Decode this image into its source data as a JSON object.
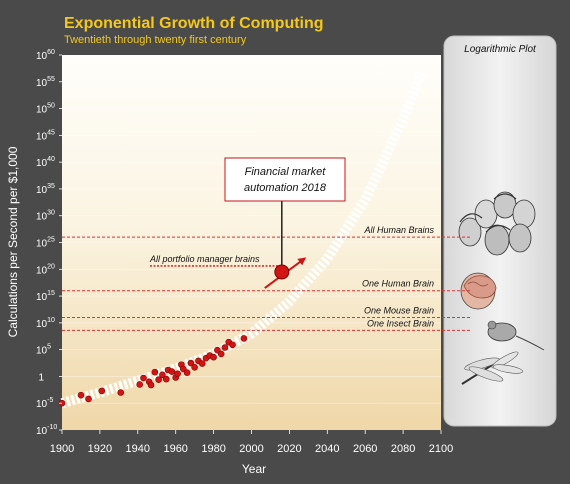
{
  "chart_data": {
    "type": "scatter",
    "title": "Exponential Growth of Computing",
    "subtitle": "Twentieth through twenty first century",
    "xlabel": "Year",
    "ylabel": "Calculations per Second per $1,000",
    "y_scale": "log",
    "xlim": [
      1900,
      2100
    ],
    "ylim_exponent": [
      -10,
      60
    ],
    "x_ticks": [
      "1900",
      "1920",
      "1940",
      "1960",
      "1980",
      "2000",
      "2020",
      "2040",
      "2060",
      "2080",
      "2100"
    ],
    "y_ticks": [
      {
        "base": "10",
        "exp": "60"
      },
      {
        "base": "10",
        "exp": "55"
      },
      {
        "base": "10",
        "exp": "50"
      },
      {
        "base": "10",
        "exp": "45"
      },
      {
        "base": "10",
        "exp": "40"
      },
      {
        "base": "10",
        "exp": "35"
      },
      {
        "base": "10",
        "exp": "30"
      },
      {
        "base": "10",
        "exp": "25"
      },
      {
        "base": "10",
        "exp": "20"
      },
      {
        "base": "10",
        "exp": "15"
      },
      {
        "base": "10",
        "exp": "10"
      },
      {
        "base": "10",
        "exp": "5"
      },
      {
        "base": "1",
        "exp": ""
      },
      {
        "base": "10",
        "exp": "-5"
      },
      {
        "base": "10",
        "exp": "-10"
      }
    ],
    "points": [
      {
        "x": 1900,
        "y_exp": -5.0
      },
      {
        "x": 1910,
        "y_exp": -3.5
      },
      {
        "x": 1914,
        "y_exp": -4.2
      },
      {
        "x": 1921,
        "y_exp": -2.7
      },
      {
        "x": 1931,
        "y_exp": -3.0
      },
      {
        "x": 1941,
        "y_exp": -1.5
      },
      {
        "x": 1943,
        "y_exp": -0.3
      },
      {
        "x": 1946,
        "y_exp": -1.0
      },
      {
        "x": 1947,
        "y_exp": -1.6
      },
      {
        "x": 1949,
        "y_exp": 0.8
      },
      {
        "x": 1951,
        "y_exp": -0.6
      },
      {
        "x": 1953,
        "y_exp": 0.3
      },
      {
        "x": 1955,
        "y_exp": -0.5
      },
      {
        "x": 1956,
        "y_exp": 1.2
      },
      {
        "x": 1958,
        "y_exp": 0.9
      },
      {
        "x": 1960,
        "y_exp": -0.2
      },
      {
        "x": 1961,
        "y_exp": 0.5
      },
      {
        "x": 1963,
        "y_exp": 2.2
      },
      {
        "x": 1964,
        "y_exp": 1.4
      },
      {
        "x": 1966,
        "y_exp": 0.7
      },
      {
        "x": 1968,
        "y_exp": 2.5
      },
      {
        "x": 1970,
        "y_exp": 1.7
      },
      {
        "x": 1972,
        "y_exp": 2.9
      },
      {
        "x": 1974,
        "y_exp": 2.4
      },
      {
        "x": 1976,
        "y_exp": 3.4
      },
      {
        "x": 1978,
        "y_exp": 3.9
      },
      {
        "x": 1980,
        "y_exp": 3.6
      },
      {
        "x": 1982,
        "y_exp": 4.9
      },
      {
        "x": 1984,
        "y_exp": 4.2
      },
      {
        "x": 1986,
        "y_exp": 5.4
      },
      {
        "x": 1988,
        "y_exp": 6.4
      },
      {
        "x": 1990,
        "y_exp": 5.9
      },
      {
        "x": 1996,
        "y_exp": 7.1
      }
    ],
    "trend_curve": [
      {
        "x": 1900,
        "y_exp": -5
      },
      {
        "x": 1920,
        "y_exp": -3
      },
      {
        "x": 1940,
        "y_exp": -0.8
      },
      {
        "x": 1960,
        "y_exp": 1.5
      },
      {
        "x": 1980,
        "y_exp": 4.2
      },
      {
        "x": 2000,
        "y_exp": 8
      },
      {
        "x": 2020,
        "y_exp": 14
      },
      {
        "x": 2040,
        "y_exp": 22
      },
      {
        "x": 2060,
        "y_exp": 33
      },
      {
        "x": 2080,
        "y_exp": 48
      },
      {
        "x": 2090,
        "y_exp": 57
      }
    ],
    "reference_lines": [
      {
        "label": "All Human Brains",
        "y_exp": 26
      },
      {
        "label": "One Human Brain",
        "y_exp": 16
      },
      {
        "label": "One Mouse Brain",
        "y_exp": 11
      },
      {
        "label": "One Insect Brain",
        "y_exp": 8.6
      }
    ],
    "highlight": {
      "callout": "Financial market automation 2018",
      "label": "All portfolio manager brains",
      "x": 2016,
      "y_exp": 19.5,
      "label_y_exp": 21,
      "arrow_from": {
        "x": 2007,
        "y_exp": 16.5
      },
      "arrow_to": {
        "x": 2028,
        "y_exp": 22
      }
    },
    "side_panel_title": "Logarithmic Plot",
    "colors": {
      "background": "#4a4a4a",
      "plot_top": "#fffefa",
      "plot_bottom": "#efd7a8",
      "title": "#f4c81d",
      "subtitle": "#f4c81d",
      "point": "#d11515",
      "reference_line": "#e03030",
      "axis_text": "#ffffff",
      "panel": "#e6e6e6"
    }
  }
}
